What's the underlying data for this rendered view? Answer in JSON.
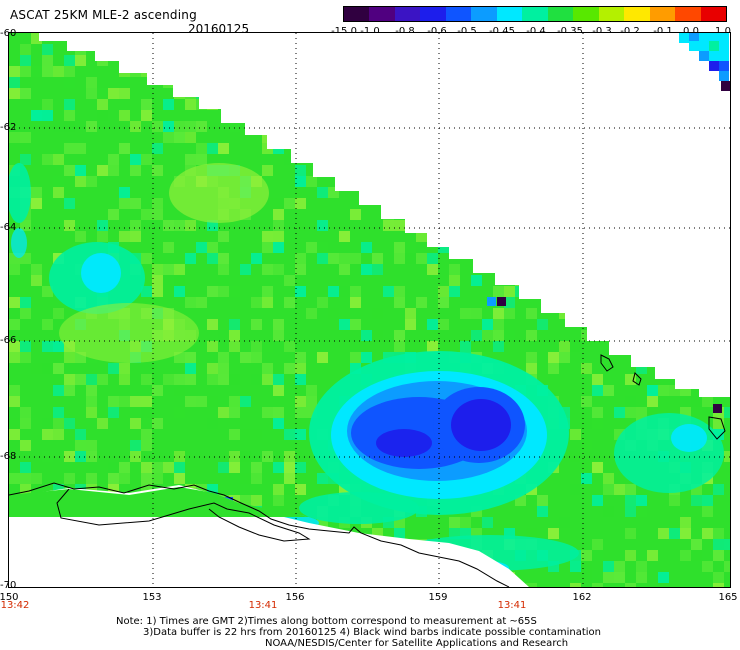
{
  "header": {
    "title": "ASCAT 25KM MLE-2 ascending",
    "date": "20160125"
  },
  "colorbar": {
    "labels": [
      "-15.0",
      "-1.0",
      "-0.8",
      "-0.6",
      "-0.5",
      "-0.45",
      "-0.4",
      "-0.35",
      "-0.3",
      "-0.2",
      "-0.1",
      "0.0",
      "1.0"
    ],
    "colors": [
      "#300040",
      "#500080",
      "#3b14c4",
      "#1d1eec",
      "#0f55ff",
      "#0c9cff",
      "#00e8ff",
      "#00f0a0",
      "#20e040",
      "#58e800",
      "#b4f000",
      "#ffe800",
      "#ff9c00",
      "#ff4800",
      "#e80000"
    ]
  },
  "axes": {
    "lat_labels": [
      "-60",
      "-62",
      "-64",
      "-66",
      "-68",
      "-70"
    ],
    "lon_labels": [
      "150",
      "153",
      "156",
      "159",
      "162",
      "165"
    ],
    "time_labels": [
      "13:42",
      "13:41",
      "13:41"
    ]
  },
  "map_colors": {
    "green_main": "#2fe02c",
    "green_light": "#5eea3a",
    "green_yellow": "#8ef03a",
    "aqua": "#00f0a0",
    "cyan": "#00e8ff",
    "sky": "#0c9cff",
    "blue": "#0f55ff",
    "deep_blue": "#1d1eec",
    "purple": "#300040",
    "coast": "#000000"
  },
  "notes": {
    "line1": "Note: 1) Times are GMT 2)Times along bottom correspond to measurement at ~65S",
    "line2": "3)Data buffer is 22 hrs from 20160125 4) Black wind barbs indicate possible contamination",
    "line3": "NOAA/NESDIS/Center for Satellite Applications and Research"
  }
}
